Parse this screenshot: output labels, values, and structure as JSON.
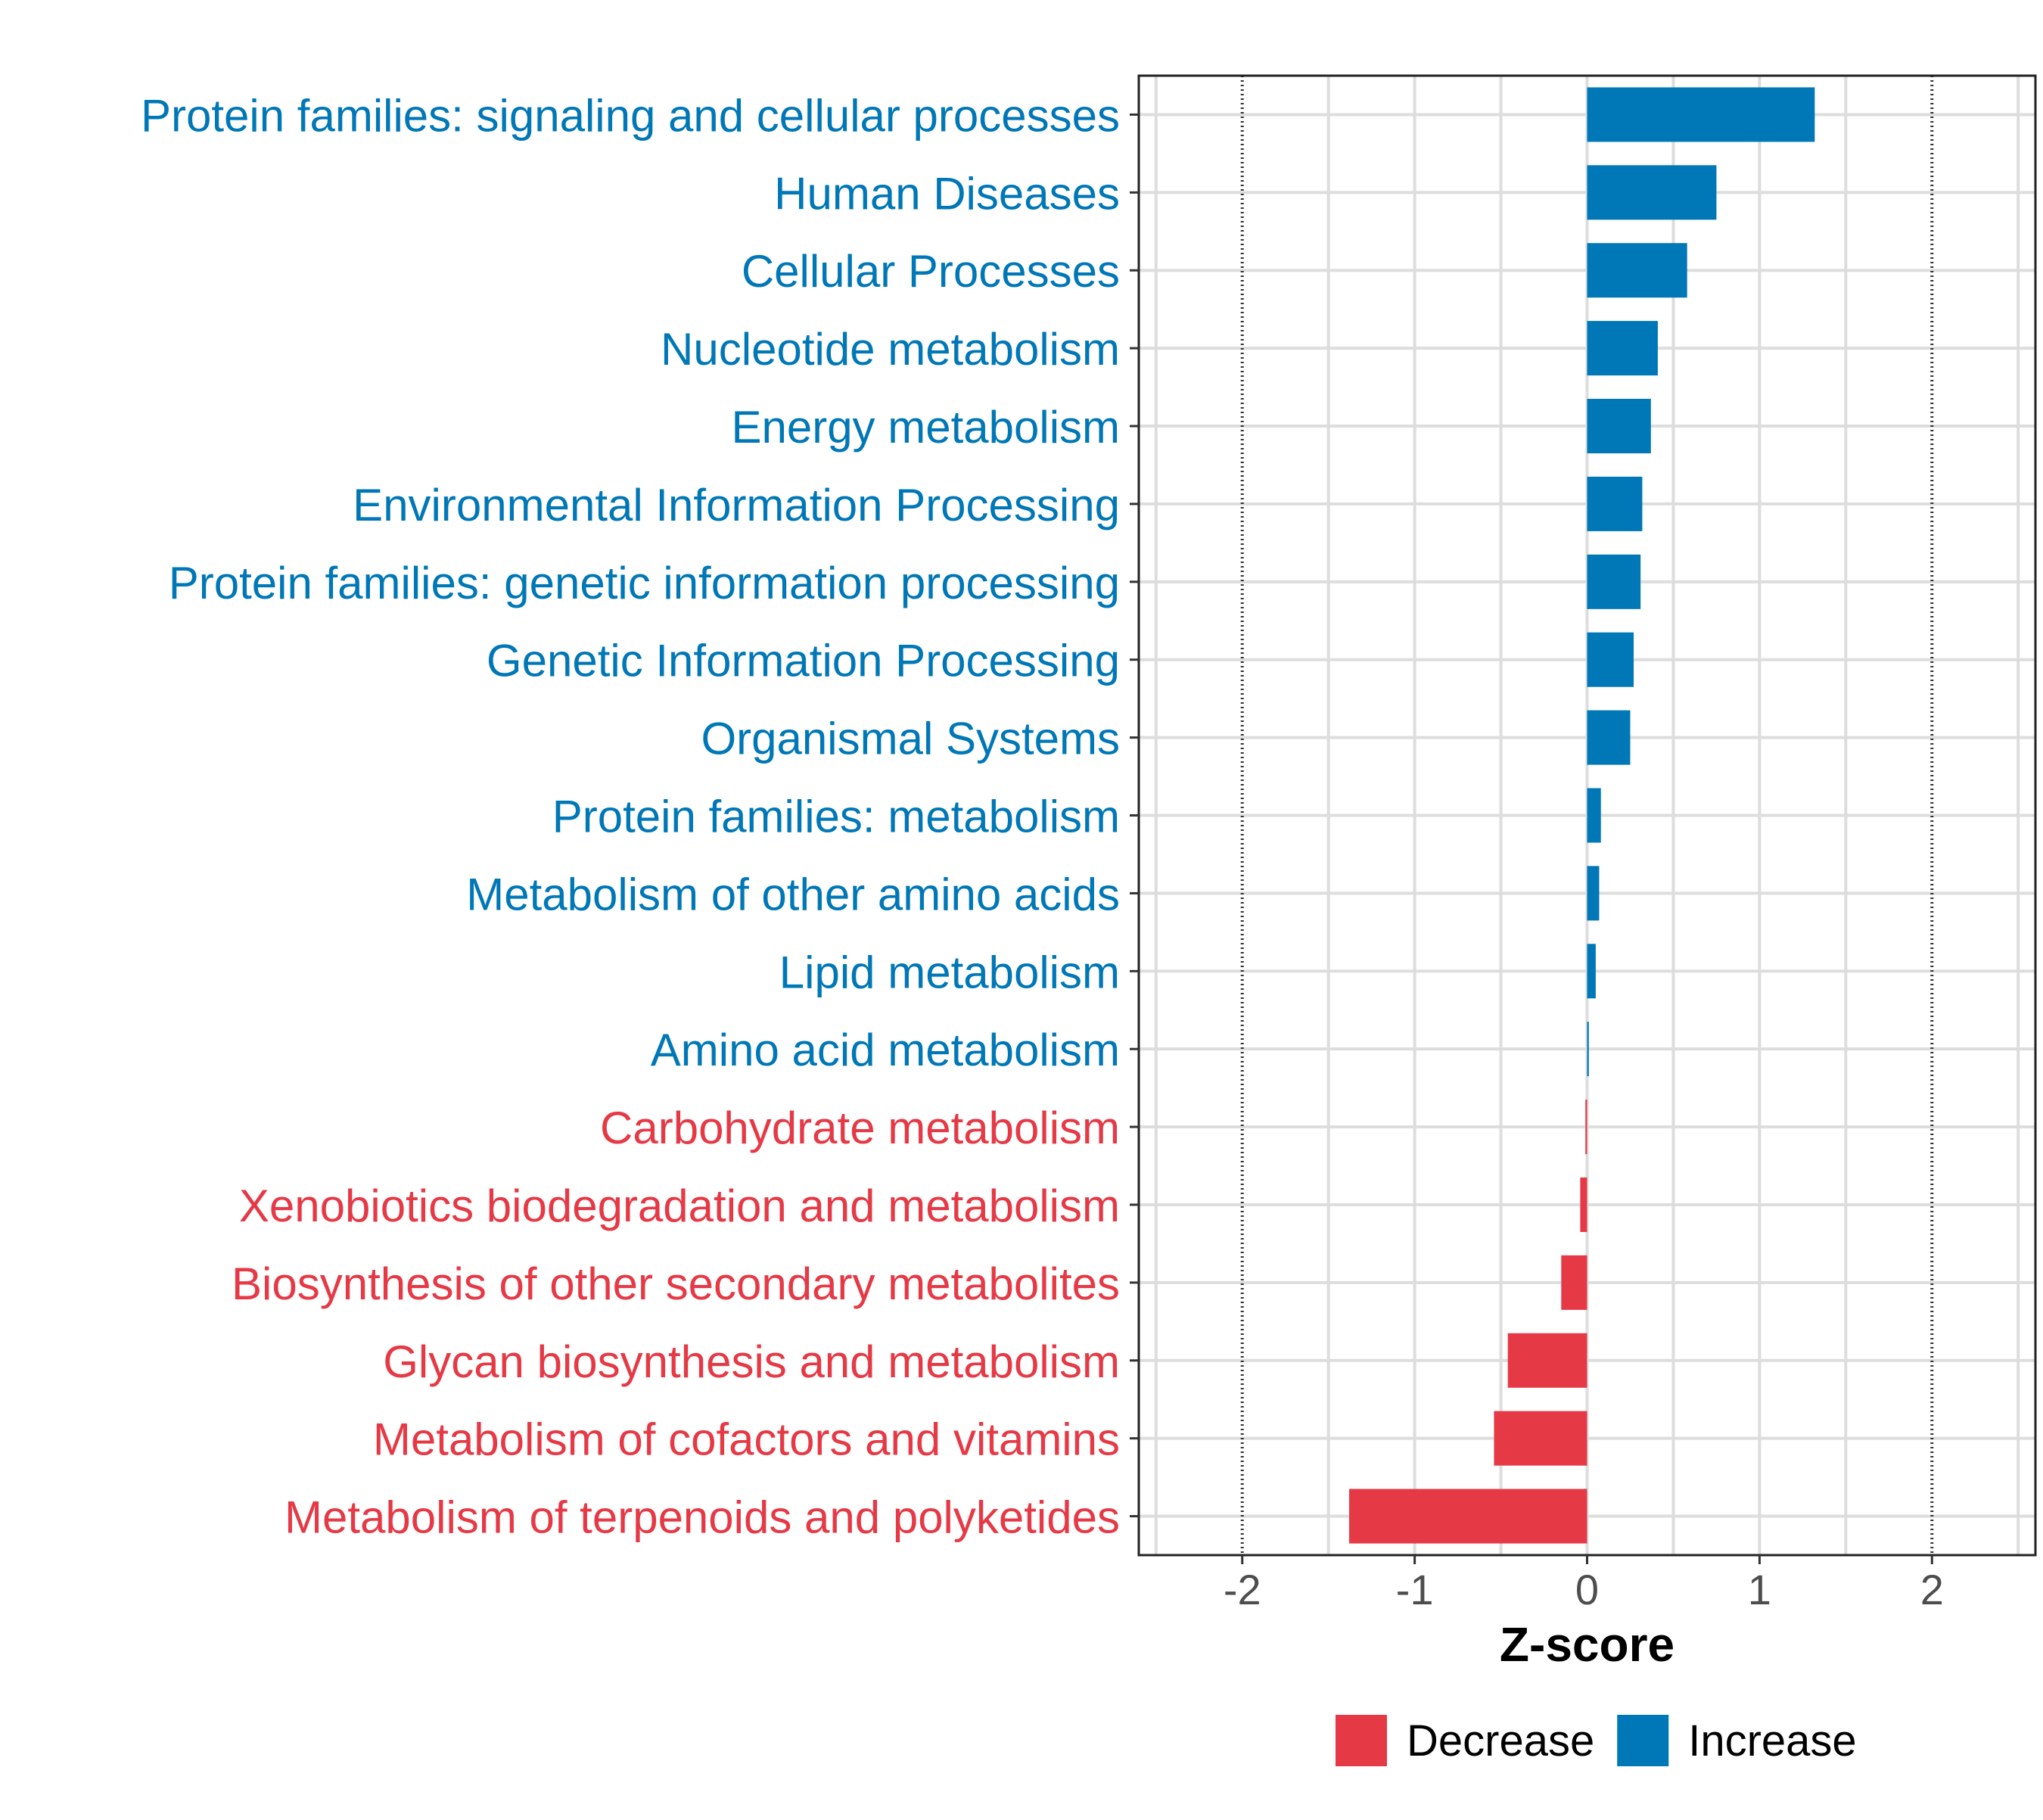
{
  "chart_data": {
    "type": "bar",
    "orientation": "horizontal",
    "title": "",
    "xlabel": "Z-score",
    "ylabel": "",
    "xlim": [
      -2.6,
      2.6
    ],
    "x_ticks": [
      -2,
      -1,
      0,
      1,
      2
    ],
    "x_tick_labels": [
      "-2",
      "-1",
      "0",
      "1",
      "2"
    ],
    "reference_lines": [
      -2,
      2
    ],
    "grid": true,
    "legend_position": "bottom",
    "colors": {
      "Decrease": "#E63946",
      "Increase": "#0077B6"
    },
    "legend": [
      {
        "name": "Decrease",
        "color": "#E63946"
      },
      {
        "name": "Increase",
        "color": "#0077B6"
      }
    ],
    "categories": [
      "Protein families: signaling and cellular processes",
      "Human Diseases",
      "Cellular Processes",
      "Nucleotide metabolism",
      "Energy metabolism",
      "Environmental Information Processing",
      "Protein families: genetic information processing",
      "Genetic Information Processing",
      "Organismal Systems",
      "Protein families: metabolism",
      "Metabolism of other amino acids",
      "Lipid metabolism",
      "Amino acid metabolism",
      "Carbohydrate metabolism",
      "Xenobiotics biodegradation and metabolism",
      "Biosynthesis of other secondary metabolites",
      "Glycan biosynthesis and metabolism",
      "Metabolism of cofactors and vitamins",
      "Metabolism of terpenoids and polyketides"
    ],
    "values": [
      1.32,
      0.75,
      0.58,
      0.41,
      0.37,
      0.32,
      0.31,
      0.27,
      0.25,
      0.08,
      0.07,
      0.05,
      0.01,
      -0.01,
      -0.04,
      -0.15,
      -0.46,
      -0.54,
      -1.38
    ],
    "groups": [
      "Increase",
      "Increase",
      "Increase",
      "Increase",
      "Increase",
      "Increase",
      "Increase",
      "Increase",
      "Increase",
      "Increase",
      "Increase",
      "Increase",
      "Increase",
      "Decrease",
      "Decrease",
      "Decrease",
      "Decrease",
      "Decrease",
      "Decrease"
    ]
  }
}
